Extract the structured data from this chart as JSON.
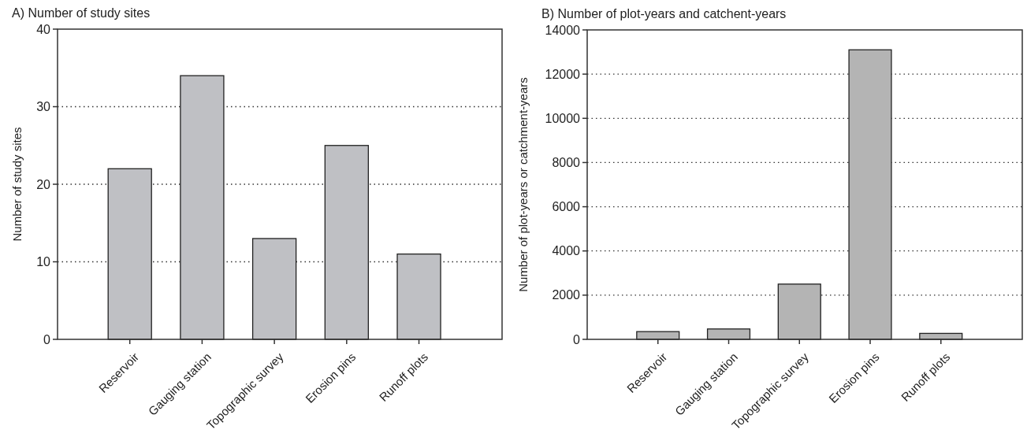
{
  "chart_data": [
    {
      "type": "bar",
      "title": "A) Number of study sites",
      "ylabel": "Number of study sites",
      "categories": [
        "Reservoir",
        "Gauging station",
        "Topographic survey",
        "Erosion pins",
        "Runoff plots"
      ],
      "series": [
        {
          "color": "#bfc0c4",
          "values": [
            22,
            34,
            13,
            25,
            11
          ]
        }
      ],
      "ylim": [
        0,
        40
      ],
      "yticks": [
        0,
        10,
        20,
        30,
        40
      ],
      "grid": "y"
    },
    {
      "type": "bar",
      "title": "B) Number of plot-years and catchent-years",
      "ylabel": "Number of plot-years or catchment-years",
      "categories": [
        "Reservoir",
        "Gauging station",
        "Topographic survey",
        "Erosion pins",
        "Runoff plots"
      ],
      "series": [
        {
          "color": "#b4b4b4",
          "values": [
            350,
            470,
            2500,
            13100,
            270
          ]
        }
      ],
      "ylim": [
        0,
        14000
      ],
      "yticks": [
        0,
        2000,
        4000,
        6000,
        8000,
        10000,
        12000,
        14000
      ],
      "grid": "y"
    }
  ]
}
